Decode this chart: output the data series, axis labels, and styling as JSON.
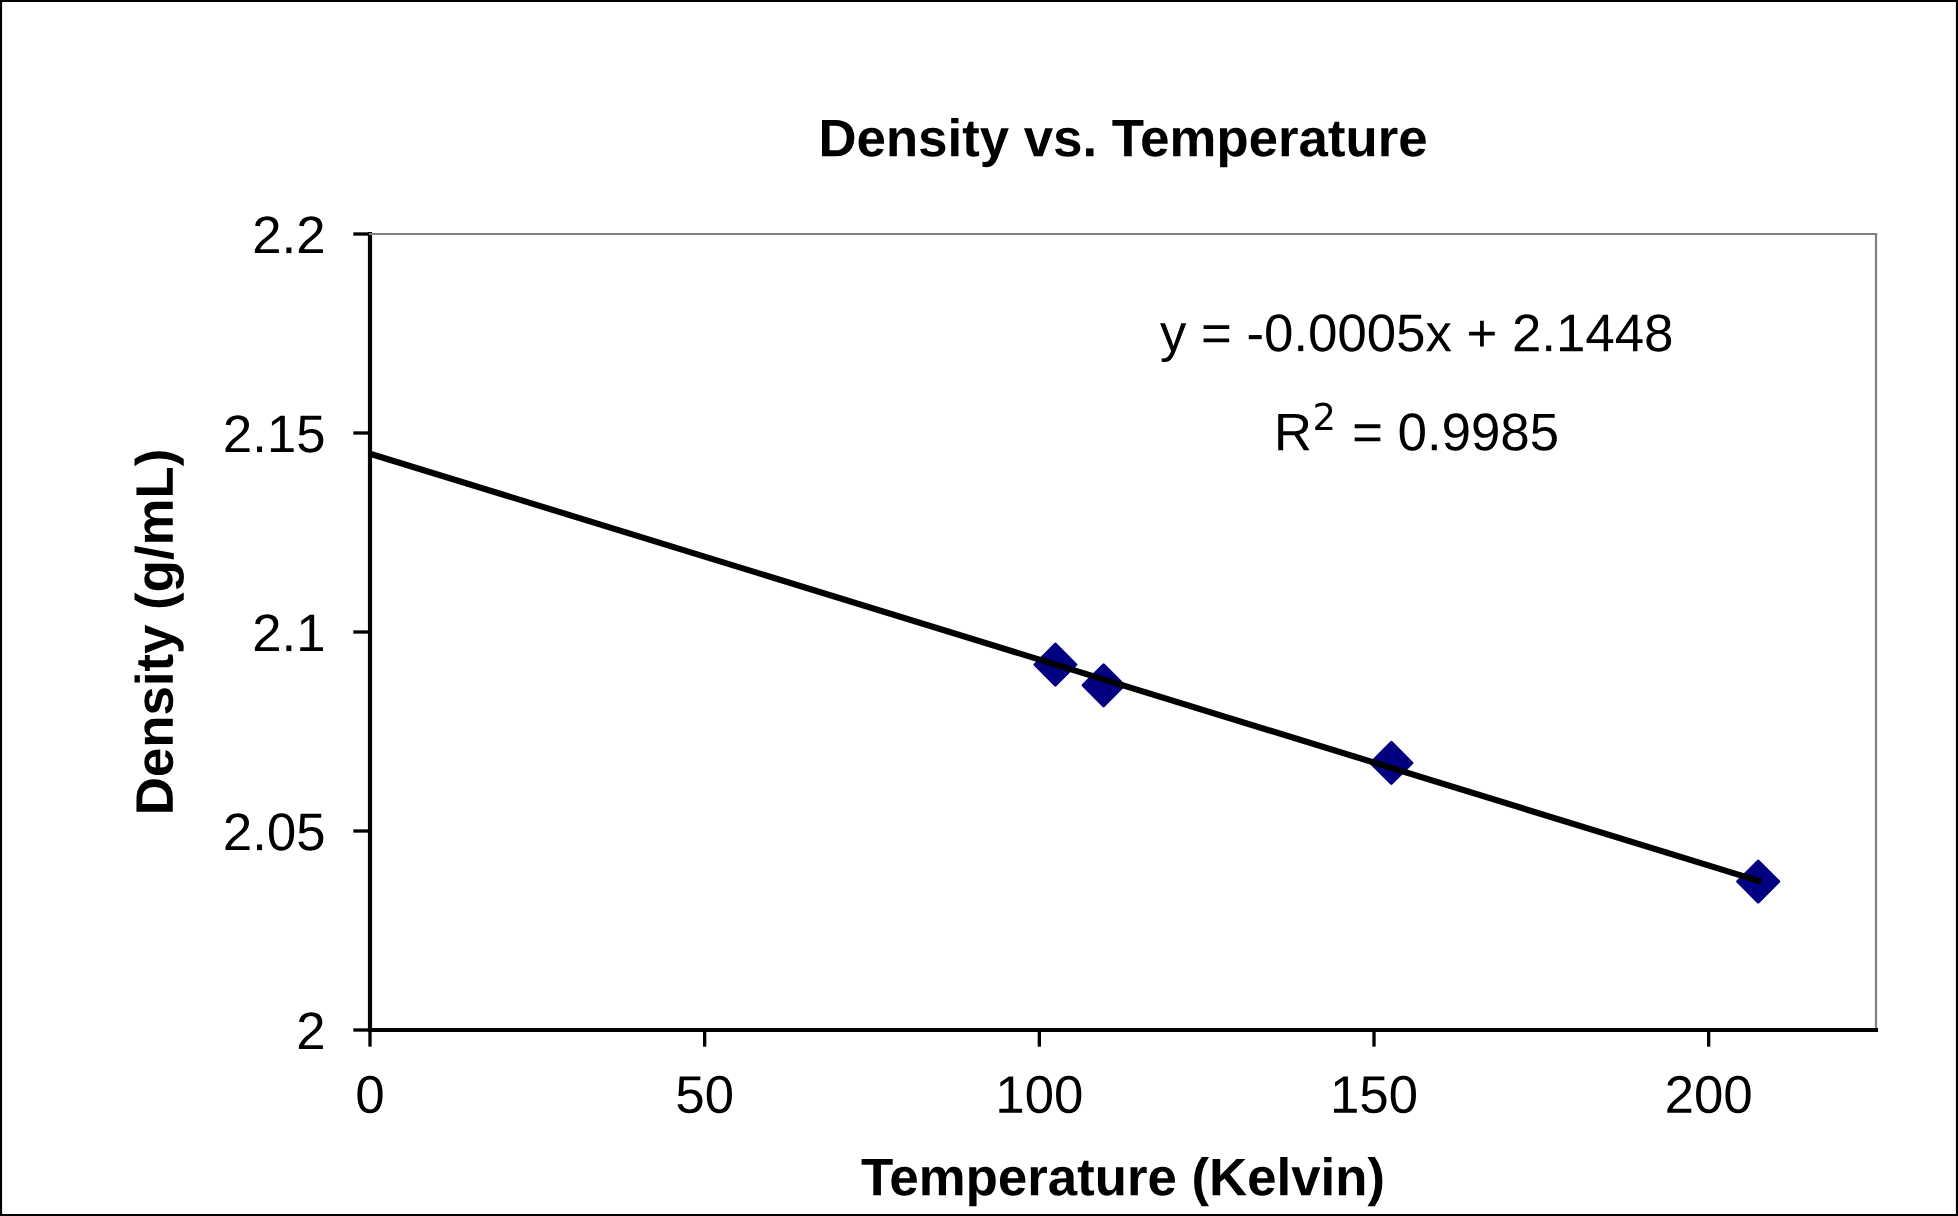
{
  "chart_data": {
    "type": "scatter",
    "title": "Density vs. Temperature",
    "xlabel": "Temperature (Kelvin)",
    "ylabel": "Density (g/mL)",
    "series": [
      {
        "color": "#000080",
        "marker": "diamond",
        "x": [
          102.4,
          109.6,
          152.6,
          207.4
        ],
        "values": [
          2.0918,
          2.0866,
          2.0671,
          2.0373
        ]
      },
      {
        "type": "line",
        "color": "#000000",
        "marker": "none",
        "line_style": "solid",
        "x": [
          0,
          207.4
        ],
        "values": [
          2.1448,
          2.0375
        ]
      }
    ],
    "annotations": [
      "y = -0.0005x + 2.1448",
      "R$^{2}$ = 0.9985"
    ],
    "xlim": [
      0,
      225
    ],
    "xticks": [
      0,
      50,
      100,
      150,
      200
    ],
    "ylim": [
      2,
      2.2
    ],
    "yticks": [
      2,
      2.05,
      2.1,
      2.15,
      2.2
    ],
    "grid": false,
    "legend": false
  }
}
